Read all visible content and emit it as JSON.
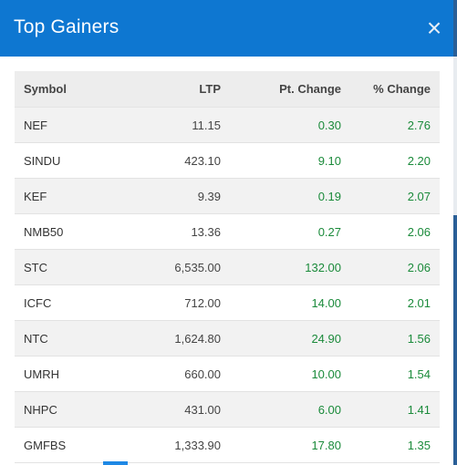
{
  "modal": {
    "title": "Top Gainers",
    "close_icon": "close-icon",
    "close_glyph": "×"
  },
  "table": {
    "headers": [
      "Symbol",
      "LTP",
      "Pt. Change",
      "% Change"
    ],
    "rows": [
      [
        "NEF",
        "11.15",
        "0.30",
        "2.76"
      ],
      [
        "SINDU",
        "423.10",
        "9.10",
        "2.20"
      ],
      [
        "KEF",
        "9.39",
        "0.19",
        "2.07"
      ],
      [
        "NMB50",
        "13.36",
        "0.27",
        "2.06"
      ],
      [
        "STC",
        "6,535.00",
        "132.00",
        "2.06"
      ],
      [
        "ICFC",
        "712.00",
        "14.00",
        "2.01"
      ],
      [
        "NTC",
        "1,624.80",
        "24.90",
        "1.56"
      ],
      [
        "UMRH",
        "660.00",
        "10.00",
        "1.54"
      ],
      [
        "NHPC",
        "431.00",
        "6.00",
        "1.41"
      ],
      [
        "GMFBS",
        "1,333.90",
        "17.80",
        "1.35"
      ]
    ]
  },
  "colors": {
    "header_bg": "#0e77d1",
    "positive": "#1a8a3a",
    "row_alt": "#f2f2f2"
  }
}
